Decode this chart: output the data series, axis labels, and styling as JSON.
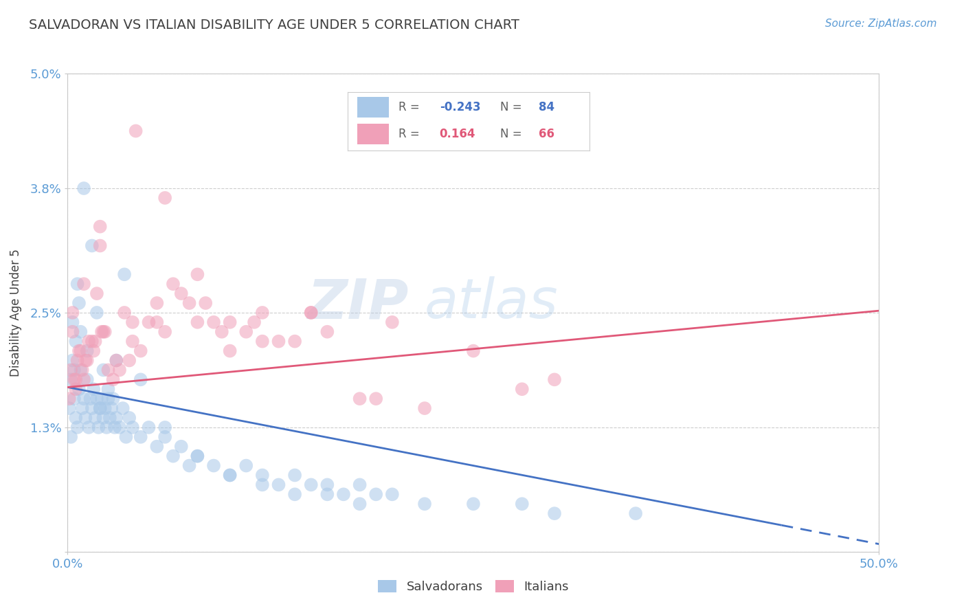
{
  "title": "SALVADORAN VS ITALIAN DISABILITY AGE UNDER 5 CORRELATION CHART",
  "source": "Source: ZipAtlas.com",
  "ylabel": "Disability Age Under 5",
  "xlim": [
    0,
    50
  ],
  "ylim": [
    0,
    5.0
  ],
  "yticks": [
    0.0,
    1.3,
    2.5,
    3.8,
    5.0
  ],
  "ytick_labels": [
    "",
    "1.3%",
    "2.5%",
    "3.8%",
    "5.0%"
  ],
  "xticks": [
    0,
    50
  ],
  "xtick_labels": [
    "0.0%",
    "50.0%"
  ],
  "r_salvadoran": -0.243,
  "n_salvadoran": 84,
  "r_italian": 0.164,
  "n_italian": 66,
  "color_salvadoran": "#a8c8e8",
  "color_italian": "#f0a0b8",
  "color_line_salvadoran": "#4472c4",
  "color_line_italian": "#e05878",
  "background_color": "#ffffff",
  "grid_color": "#c8c8c8",
  "title_color": "#404040",
  "tick_label_color": "#5b9bd5",
  "sal_line_x0": 0.0,
  "sal_line_y0": 1.72,
  "sal_line_x1": 50.0,
  "sal_line_y1": 0.08,
  "sal_solid_end_x": 44.0,
  "ita_line_x0": 0.0,
  "ita_line_y0": 1.72,
  "ita_line_x1": 50.0,
  "ita_line_y1": 2.52,
  "sal_x": [
    0.1,
    0.2,
    0.3,
    0.4,
    0.5,
    0.6,
    0.7,
    0.8,
    0.9,
    1.0,
    1.1,
    1.2,
    1.3,
    1.4,
    1.5,
    1.6,
    1.7,
    1.8,
    1.9,
    2.0,
    2.1,
    2.2,
    2.3,
    2.4,
    2.5,
    2.6,
    2.7,
    2.8,
    2.9,
    3.0,
    3.2,
    3.4,
    3.6,
    3.8,
    4.0,
    4.5,
    5.0,
    5.5,
    6.0,
    6.5,
    7.0,
    7.5,
    8.0,
    9.0,
    10.0,
    11.0,
    12.0,
    13.0,
    14.0,
    15.0,
    16.0,
    17.0,
    18.0,
    19.0,
    20.0,
    22.0,
    25.0,
    28.0,
    30.0,
    35.0,
    0.3,
    0.5,
    0.7,
    1.0,
    1.5,
    2.0,
    2.5,
    3.0,
    0.2,
    0.4,
    0.6,
    0.8,
    1.2,
    1.8,
    2.2,
    3.5,
    4.5,
    6.0,
    8.0,
    10.0,
    12.0,
    14.0,
    16.0,
    18.0
  ],
  "sal_y": [
    1.5,
    1.8,
    2.0,
    1.6,
    1.4,
    1.3,
    1.7,
    1.9,
    1.5,
    1.6,
    1.4,
    1.8,
    1.3,
    1.6,
    1.5,
    1.7,
    1.4,
    1.6,
    1.3,
    1.5,
    1.6,
    1.4,
    1.5,
    1.3,
    1.6,
    1.4,
    1.5,
    1.6,
    1.3,
    1.4,
    1.3,
    1.5,
    1.2,
    1.4,
    1.3,
    1.2,
    1.3,
    1.1,
    1.2,
    1.0,
    1.1,
    0.9,
    1.0,
    0.9,
    0.8,
    0.9,
    0.8,
    0.7,
    0.8,
    0.7,
    0.7,
    0.6,
    0.7,
    0.6,
    0.6,
    0.5,
    0.5,
    0.5,
    0.4,
    0.4,
    2.4,
    2.2,
    2.6,
    3.8,
    3.2,
    1.5,
    1.7,
    2.0,
    1.2,
    1.9,
    2.8,
    2.3,
    2.1,
    2.5,
    1.9,
    2.9,
    1.8,
    1.3,
    1.0,
    0.8,
    0.7,
    0.6,
    0.6,
    0.5
  ],
  "ita_x": [
    0.1,
    0.2,
    0.3,
    0.5,
    0.8,
    1.0,
    1.2,
    1.5,
    1.8,
    2.0,
    2.2,
    2.5,
    2.8,
    3.0,
    3.5,
    4.0,
    4.5,
    5.0,
    5.5,
    6.0,
    7.0,
    8.0,
    9.0,
    10.0,
    11.0,
    12.0,
    13.0,
    14.0,
    16.0,
    18.0,
    20.0,
    22.0,
    25.0,
    28.0,
    30.0,
    0.4,
    0.6,
    0.9,
    1.3,
    1.7,
    2.3,
    3.2,
    4.2,
    6.5,
    8.5,
    0.7,
    1.1,
    1.6,
    2.1,
    3.8,
    5.5,
    7.5,
    9.5,
    11.5,
    15.0,
    19.0,
    0.3,
    0.5,
    1.0,
    2.0,
    4.0,
    6.0,
    8.0,
    10.0,
    12.0,
    15.0
  ],
  "ita_y": [
    1.6,
    1.9,
    2.3,
    1.7,
    2.1,
    1.8,
    2.0,
    2.2,
    2.7,
    3.4,
    2.3,
    1.9,
    1.8,
    2.0,
    2.5,
    2.2,
    2.1,
    2.4,
    2.6,
    3.7,
    2.7,
    2.9,
    2.4,
    2.1,
    2.3,
    2.5,
    2.2,
    2.2,
    2.3,
    1.6,
    2.4,
    1.5,
    2.1,
    1.7,
    1.8,
    1.8,
    2.0,
    1.9,
    2.2,
    2.2,
    2.3,
    1.9,
    4.4,
    2.8,
    2.6,
    2.1,
    2.0,
    2.1,
    2.3,
    2.0,
    2.4,
    2.6,
    2.3,
    2.4,
    2.5,
    1.6,
    2.5,
    1.8,
    2.8,
    3.2,
    2.4,
    2.3,
    2.4,
    2.4,
    2.2,
    2.5
  ]
}
